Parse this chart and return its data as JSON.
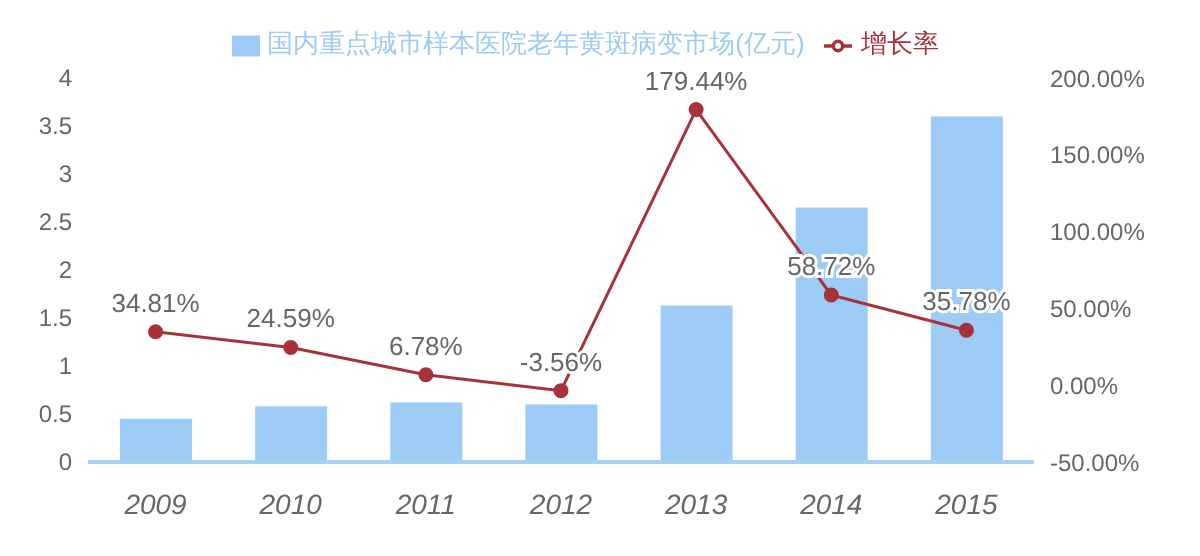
{
  "chart_data": {
    "type": "bar",
    "categories": [
      "2009",
      "2010",
      "2011",
      "2012",
      "2013",
      "2014",
      "2015"
    ],
    "series": [
      {
        "name": "国内重点城市样本医院老年黄斑病变市场(亿元)",
        "color": "#9ccbf5",
        "values": [
          0.45,
          0.58,
          0.62,
          0.6,
          1.63,
          2.65,
          3.6
        ]
      },
      {
        "name": "增长率",
        "type": "line",
        "axis": "y2",
        "color": "#a8323a",
        "marker": "circle",
        "values": [
          34.81,
          24.59,
          6.78,
          -3.56,
          179.44,
          58.72,
          35.78
        ],
        "value_labels": [
          "34.81%",
          "24.59%",
          "6.78%",
          "-3.56%",
          "179.44%",
          "58.72%",
          "35.78%"
        ]
      }
    ],
    "ylim": [
      0,
      4
    ],
    "yticks": [
      0,
      0.5,
      1,
      1.5,
      2,
      2.5,
      3,
      3.5,
      4
    ],
    "y2lim": [
      -50,
      200
    ],
    "y2ticks": [
      {
        "value": -50,
        "label": "-50.00%"
      },
      {
        "value": 0,
        "label": "0.00%"
      },
      {
        "value": 50,
        "label": "50.00%"
      },
      {
        "value": 100,
        "label": "100.00%"
      },
      {
        "value": 150,
        "label": "150.00%"
      },
      {
        "value": 200,
        "label": "200.00%"
      }
    ],
    "grid": false,
    "legend": "top"
  }
}
